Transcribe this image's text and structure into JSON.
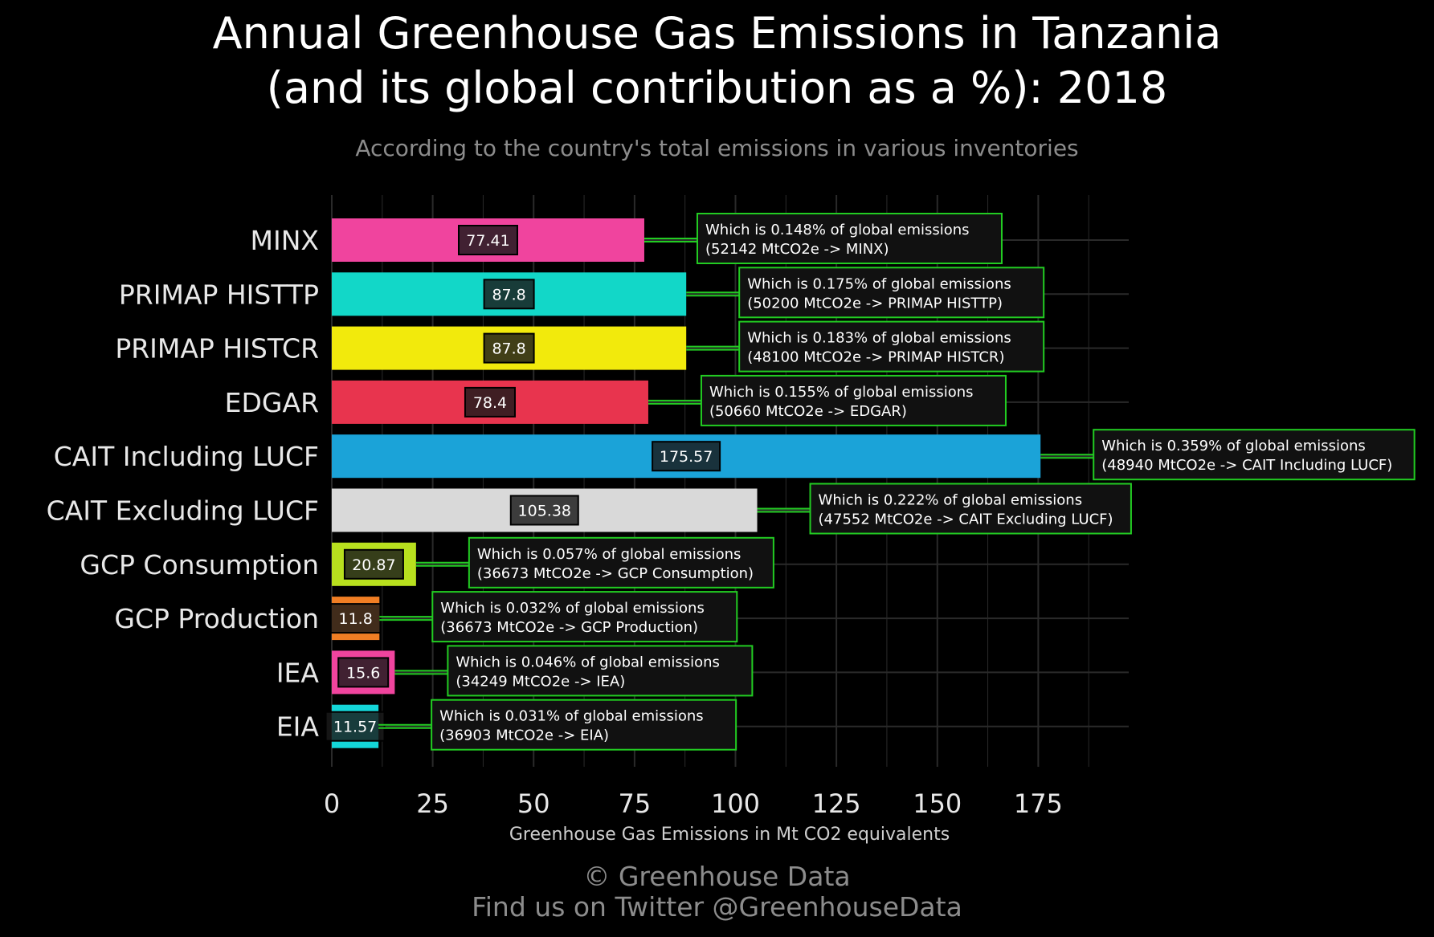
{
  "page": {
    "title_line1": "Annual Greenhouse Gas Emissions in Tanzania",
    "title_line2": "(and its global contribution as a %): 2018",
    "subtitle": "According to the country's total emissions in various inventories",
    "footer_line1": "© Greenhouse Data",
    "footer_line2": "Find us on Twitter @GreenhouseData"
  },
  "chart_data": {
    "type": "bar",
    "orientation": "horizontal",
    "title": "Annual Greenhouse Gas Emissions in Tanzania (and its global contribution as a %): 2018",
    "subtitle": "According to the country's total emissions in various inventories",
    "xlabel": "Greenhouse Gas Emissions in Mt CO2 equivalents",
    "ylabel": "",
    "xlim": [
      0,
      198
    ],
    "xticks": [
      0,
      25,
      50,
      75,
      100,
      125,
      150,
      175
    ],
    "grid": true,
    "categories": [
      "MINX",
      "PRIMAP HISTTP",
      "PRIMAP HISTCR",
      "EDGAR",
      "CAIT Including LUCF",
      "CAIT Excluding LUCF",
      "GCP Consumption",
      "GCP Production",
      "IEA",
      "EIA"
    ],
    "values": [
      77.41,
      87.8,
      87.8,
      78.4,
      175.57,
      105.38,
      20.87,
      11.8,
      15.6,
      11.57
    ],
    "value_labels": [
      "77.41",
      "87.8",
      "87.8",
      "78.4",
      "175.57",
      "105.38",
      "20.87",
      "11.8",
      "15.6",
      "11.57"
    ],
    "bar_colors": [
      "#f0449e",
      "#12d7c8",
      "#f2ea0c",
      "#e8344e",
      "#1ba3d8",
      "#d9d9d9",
      "#b8e01e",
      "#f07e24",
      "#f0449e",
      "#14d6d8"
    ],
    "annotations": [
      {
        "line1": "Which is 0.148% of global emissions",
        "line2": "(52142 MtCO2e -> MINX)"
      },
      {
        "line1": "Which is 0.175% of global emissions",
        "line2": "(50200 MtCO2e -> PRIMAP HISTTP)"
      },
      {
        "line1": "Which is 0.183% of global emissions",
        "line2": "(48100 MtCO2e -> PRIMAP HISTCR)"
      },
      {
        "line1": "Which is 0.155% of global emissions",
        "line2": "(50660 MtCO2e -> EDGAR)"
      },
      {
        "line1": "Which is 0.359% of global emissions",
        "line2": "(48940 MtCO2e -> CAIT Including LUCF)"
      },
      {
        "line1": "Which is 0.222% of global emissions",
        "line2": "(47552 MtCO2e -> CAIT Excluding LUCF)"
      },
      {
        "line1": "Which is 0.057% of global emissions",
        "line2": "(36673 MtCO2e -> GCP Consumption)"
      },
      {
        "line1": "Which is 0.032% of global emissions",
        "line2": "(36673 MtCO2e -> GCP Production)"
      },
      {
        "line1": "Which is 0.046% of global emissions",
        "line2": "(34249 MtCO2e -> IEA)"
      },
      {
        "line1": "Which is 0.031% of global emissions",
        "line2": "(36903 MtCO2e -> EIA)"
      }
    ],
    "colors": {
      "background": "#000000",
      "grid": "#2a2a2a",
      "annotation_border": "#22cc22",
      "annotation_fill": "#111111",
      "connector": "#22cc22",
      "label_box_fill": "#1a1a1a",
      "axis_text": "#e8e8e8"
    }
  }
}
